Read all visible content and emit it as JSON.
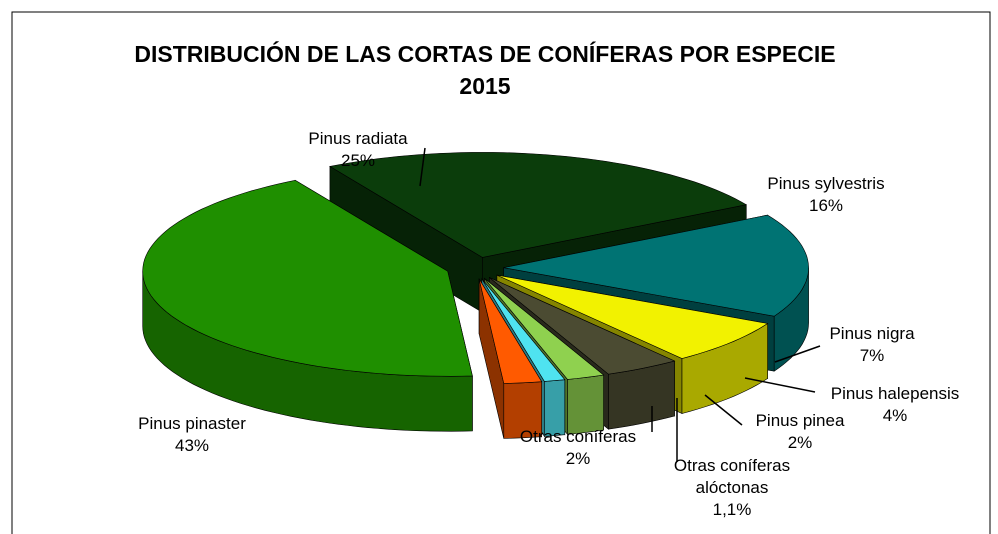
{
  "chart_data": {
    "type": "pie3d",
    "title": "DISTRIBUCIÓN  DE LAS CORTAS DE CONÍFERAS POR ESPECIE 2015",
    "categories": [
      "Pinus radiata",
      "Pinus sylvestris",
      "Pinus nigra",
      "Pinus halepensis",
      "Pinus pinea",
      "Otras coníferas alóctonas",
      "Otras coníferas",
      "Pinus pinaster"
    ],
    "values": [
      25,
      16,
      7,
      4,
      2,
      1.1,
      2,
      43
    ],
    "value_labels": [
      "25%",
      "16%",
      "7%",
      "4%",
      "2%",
      "1,1%",
      "2%",
      "43%"
    ],
    "colors": [
      "#0b3d0b",
      "#007373",
      "#f2f200",
      "#4b4b32",
      "#8fd14f",
      "#4fe3f0",
      "#ff5a00",
      "#1f8f00"
    ]
  }
}
